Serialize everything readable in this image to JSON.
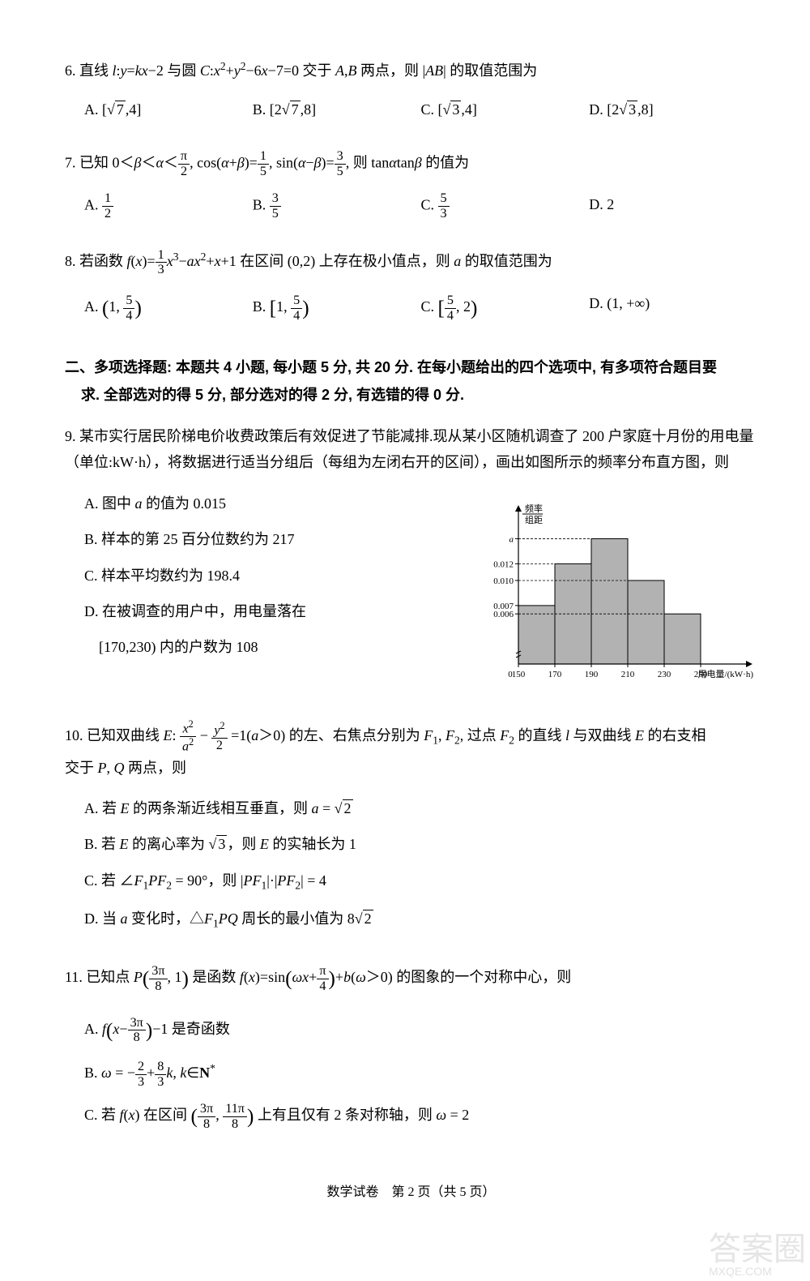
{
  "q6": {
    "num": "6.",
    "text_parts": [
      "直线 ",
      "：",
      "=",
      "−2 与圆 ",
      "：",
      "+",
      "−6",
      "−7=0 交于 ",
      ",",
      "  两点，则 |",
      "| 的取值范围为"
    ],
    "vars": [
      "l",
      "y",
      "kx",
      "C",
      "x²",
      "y²",
      "x",
      "A",
      "B",
      "AB"
    ],
    "opts": {
      "A": "A. [√7, 4]",
      "B": "B. [2√7, 8]",
      "C": "C. [√3, 4]",
      "D": "D. [2√3, 8]"
    }
  },
  "q7": {
    "num": "7.",
    "text": "已知 0＜β＜α＜ π/2, cos(α+β)= 1/5, sin(α−β)= 3/5, 则 tanα tanβ 的值为",
    "opts": {
      "A": "A. 1/2",
      "B": "B. 3/5",
      "C": "C. 5/3",
      "D": "D. 2"
    }
  },
  "q8": {
    "num": "8.",
    "text": "若函数 f(x)= (1/3)x³ − ax² + x + 1 在区间 (0,2) 上存在极小值点，则 a 的取值范围为",
    "opts": {
      "A": "A. (1, 5/4)",
      "B": "B. [1, 5/4)",
      "C": "C. [5/4, 2)",
      "D": "D. (1, +∞)"
    }
  },
  "section2": {
    "title": "二、多项选择题：本题共4小题，每小题5分,共20分.在每小题给出的四个选项中，有多项符合题目要求.全部选对的得5分，部分选对的得2分,有选错的得0分."
  },
  "q9": {
    "num": "9.",
    "text": "某市实行居民阶梯电价收费政策后有效促进了节能减排.现从某小区随机调查了 200 户家庭十月份的用电量（单位:kW·h），将数据进行适当分组后（每组为左闭右开的区间），画出如图所示的频率分布直方图，则",
    "opts": {
      "A": "A. 图中 a 的值为 0.015",
      "B": "B. 样本的第 25 百分位数约为 217",
      "C": "C. 样本平均数约为 198.4",
      "D": "D. 在被调查的用户中，用电量落在",
      "D2": "[170,230) 内的户数为 108"
    },
    "chart": {
      "type": "histogram",
      "x_label": "用电量/(kW·h)",
      "y_label": "频率/组距",
      "x_ticks": [
        150,
        170,
        190,
        210,
        230,
        250
      ],
      "y_ticks": [
        0.006,
        0.007,
        0.01,
        0.012
      ],
      "a_label": "a",
      "bars": [
        {
          "x0": 150,
          "x1": 170,
          "h": 0.007,
          "color": "#b2b2b2"
        },
        {
          "x0": 170,
          "x1": 190,
          "h": 0.012,
          "color": "#b2b2b2"
        },
        {
          "x0": 190,
          "x1": 210,
          "h": 0.015,
          "color": "#b2b2b2"
        },
        {
          "x0": 210,
          "x1": 230,
          "h": 0.01,
          "color": "#b2b2b2"
        },
        {
          "x0": 230,
          "x1": 250,
          "h": 0.006,
          "color": "#b2b2b2"
        }
      ],
      "y_max": 0.0165,
      "axis_color": "#000000",
      "grid_color": "#000000",
      "font_size": 11,
      "bar_border": "#000000"
    }
  },
  "q10": {
    "num": "10.",
    "text": "已知双曲线 E: x²/a² − y²/2 = 1 (a>0) 的左、右焦点分别为 F₁, F₂, 过点 F₂ 的直线 l 与双曲线 E 的右支相交于 P, Q 两点，则",
    "opts": {
      "A": "A. 若 E 的两条渐近线相互垂直，则 a = √2",
      "B": "B. 若 E 的离心率为 √3，则 E 的实轴长为 1",
      "C": "C. 若 ∠F₁PF₂ = 90°，则 |PF₁|·|PF₂| = 4",
      "D": "D. 当 a 变化时，△F₁PQ 周长的最小值为 8√2"
    }
  },
  "q11": {
    "num": "11.",
    "text": "已知点 P(3π/8, 1) 是函数 f(x) = sin(ωx + π/4) + b (ω>0) 的图象的一个对称中心，则",
    "opts": {
      "A": "A. f(x − 3π/8) − 1 是奇函数",
      "B": "B. ω = −2/3 + 8k/3, k ∈ N*",
      "C": "C. 若 f(x) 在区间 (3π/8, 11π/8) 上有且仅有 2 条对称轴，则 ω = 2"
    }
  },
  "footer": {
    "text": "数学试卷　第 2 页（共 5 页）"
  },
  "watermark": {
    "big": "答案圈",
    "small": "MXQE.COM"
  }
}
